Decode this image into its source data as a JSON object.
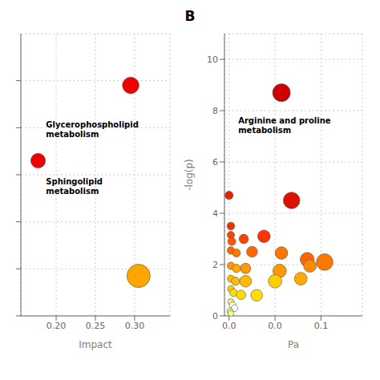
{
  "chart_data": [
    {
      "type": "scatter",
      "xlabel": "Impact",
      "xlim": [
        0.155,
        0.345
      ],
      "ylim": [
        0,
        12
      ],
      "xticks": [
        {
          "value": 0.2,
          "label": "0.20"
        },
        {
          "value": 0.25,
          "label": "0.25"
        },
        {
          "value": 0.3,
          "label": "0.30"
        }
      ],
      "yticks": [
        0,
        2,
        4,
        6,
        8,
        10
      ],
      "tick_labels": "x",
      "grid": true,
      "x": [
        0.295,
        0.177,
        0.305
      ],
      "values": [
        9.8,
        6.6,
        1.7
      ],
      "sizes": [
        280,
        220,
        550
      ],
      "colors": [
        "#EE0000",
        "#EE0000",
        "#FFA500"
      ],
      "annotations": [
        {
          "text": "Glycerophospholipid\nmetabolism",
          "x": 0.187,
          "y": 8.0
        },
        {
          "text": "Sphingolipid\nmetabolism",
          "x": 0.187,
          "y": 5.6
        }
      ]
    },
    {
      "type": "scatter",
      "title": "B",
      "xlabel": "Pa",
      "ylabel": "-log(p)",
      "xlim": [
        -0.005,
        0.145
      ],
      "ylim": [
        0,
        11
      ],
      "xticks": [
        {
          "value": 0.0,
          "label": "0.0"
        },
        {
          "value": 0.05,
          "label": "0.0"
        },
        {
          "value": 0.1,
          "label": "0.1"
        }
      ],
      "yticks": [
        0,
        2,
        4,
        6,
        8,
        10
      ],
      "grid": true,
      "x": [
        0.057,
        0.0,
        0.068,
        0.002,
        0.002,
        0.003,
        0.016,
        0.038,
        0.002,
        0.008,
        0.025,
        0.057,
        0.085,
        0.104,
        0.002,
        0.008,
        0.018,
        0.055,
        0.088,
        0.002,
        0.007,
        0.018,
        0.05,
        0.078,
        0.002,
        0.005,
        0.013,
        0.03,
        0.002,
        0.004,
        0.006,
        0.001,
        0.002
      ],
      "values": [
        8.7,
        4.7,
        4.5,
        3.5,
        3.15,
        2.9,
        3.0,
        3.1,
        2.55,
        2.45,
        2.5,
        2.45,
        2.2,
        2.1,
        1.95,
        1.85,
        1.85,
        1.75,
        1.95,
        1.45,
        1.35,
        1.35,
        1.35,
        1.45,
        1.05,
        0.9,
        0.82,
        0.8,
        0.55,
        0.42,
        0.3,
        0.18,
        0.1
      ],
      "sizes": [
        320,
        70,
        280,
        60,
        55,
        65,
        90,
        160,
        55,
        65,
        120,
        160,
        200,
        280,
        55,
        70,
        110,
        185,
        165,
        50,
        70,
        140,
        185,
        165,
        45,
        60,
        90,
        140,
        38,
        45,
        45,
        38,
        35
      ],
      "colors": [
        "#CC0000",
        "#EE2200",
        "#DD1100",
        "#EE3300",
        "#FF4400",
        "#FF5500",
        "#FF4400",
        "#FF3300",
        "#FF6600",
        "#FF7700",
        "#FF6600",
        "#FF7700",
        "#FF6600",
        "#FF7700",
        "#FF9900",
        "#FFAA00",
        "#FF9900",
        "#FF9900",
        "#FF8800",
        "#FFBB00",
        "#FFBB00",
        "#FFBB00",
        "#FFCC00",
        "#FFAA00",
        "#FFCC00",
        "#FFDD00",
        "#FFDD00",
        "#FFDD00",
        "#FFEE88",
        "#FFFFCC",
        "#FFFFFF",
        "#CCFFAA",
        "#FFFF88"
      ],
      "annotations": [
        {
          "text": "Arginine and proline\nmetabolism",
          "x": 0.01,
          "y": 7.5
        }
      ]
    }
  ]
}
